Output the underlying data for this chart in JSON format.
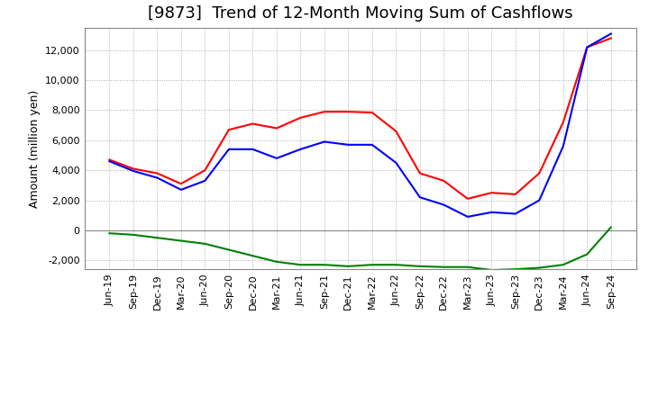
{
  "title": "[9873]  Trend of 12-Month Moving Sum of Cashflows",
  "ylabel": "Amount (million yen)",
  "ylim": [
    -2600,
    13500
  ],
  "yticks": [
    -2000,
    0,
    2000,
    4000,
    6000,
    8000,
    10000,
    12000
  ],
  "x_labels": [
    "Jun-19",
    "Sep-19",
    "Dec-19",
    "Mar-20",
    "Jun-20",
    "Sep-20",
    "Dec-20",
    "Mar-21",
    "Jun-21",
    "Sep-21",
    "Dec-21",
    "Mar-22",
    "Jun-22",
    "Sep-22",
    "Dec-22",
    "Mar-23",
    "Jun-23",
    "Sep-23",
    "Dec-23",
    "Mar-24",
    "Jun-24",
    "Sep-24"
  ],
  "operating_cashflow": [
    4700,
    4100,
    3800,
    3100,
    4000,
    6700,
    7100,
    6800,
    7500,
    7900,
    7900,
    7850,
    6600,
    3800,
    3300,
    2100,
    2500,
    2400,
    3800,
    7200,
    12200,
    12800
  ],
  "investing_cashflow": [
    -200,
    -300,
    -500,
    -700,
    -900,
    -1300,
    -1700,
    -2100,
    -2300,
    -2300,
    -2400,
    -2300,
    -2300,
    -2400,
    -2450,
    -2450,
    -2650,
    -2600,
    -2500,
    -2300,
    -1600,
    200
  ],
  "free_cashflow": [
    4600,
    3950,
    3500,
    2700,
    3300,
    5400,
    5400,
    4800,
    5400,
    5900,
    5700,
    5700,
    4500,
    2200,
    1700,
    900,
    1200,
    1100,
    2000,
    5600,
    12200,
    13100
  ],
  "line_colors": {
    "operating": "#FF0000",
    "investing": "#008000",
    "free": "#0000FF"
  },
  "background_color": "#FFFFFF",
  "plot_bg_color": "#FFFFFF",
  "grid_color": "#AAAAAA",
  "title_fontsize": 13,
  "axis_fontsize": 9,
  "tick_fontsize": 8
}
